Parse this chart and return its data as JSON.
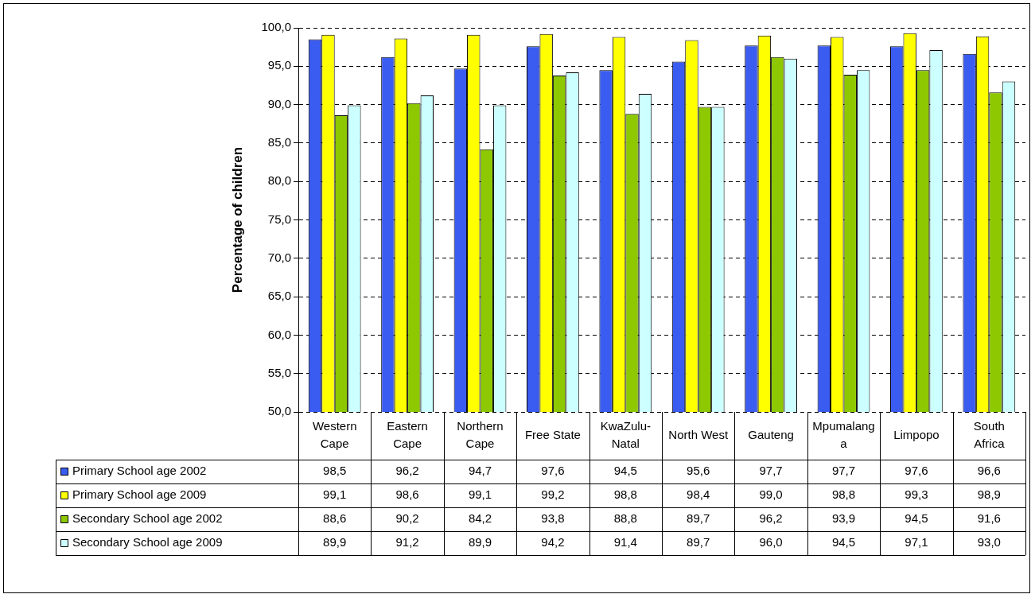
{
  "chart_data": {
    "type": "bar",
    "ylabel": "Percentage of children",
    "categories": [
      "Western Cape",
      "Eastern Cape",
      "Northern Cape",
      "Free State",
      "KwaZulu-Natal",
      "North West",
      "Gauteng",
      "Mpumalanga",
      "Limpopo",
      "South Africa"
    ],
    "series": [
      {
        "name": "Primary School age 2002",
        "color": "#3b5cf0",
        "values": [
          98.5,
          96.2,
          94.7,
          97.6,
          94.5,
          95.6,
          97.7,
          97.7,
          97.6,
          96.6
        ],
        "value_labels": [
          "98,5",
          "96,2",
          "94,7",
          "97,6",
          "94,5",
          "95,6",
          "97,7",
          "97,7",
          "97,6",
          "96,6"
        ]
      },
      {
        "name": "Primary School age 2009",
        "color": "#ffff00",
        "values": [
          99.1,
          98.6,
          99.1,
          99.2,
          98.8,
          98.4,
          99.0,
          98.8,
          99.3,
          98.9
        ],
        "value_labels": [
          "99,1",
          "98,6",
          "99,1",
          "99,2",
          "98,8",
          "98,4",
          "99,0",
          "98,8",
          "99,3",
          "98,9"
        ]
      },
      {
        "name": "Secondary School age 2002",
        "color": "#8dc800",
        "values": [
          88.6,
          90.2,
          84.2,
          93.8,
          88.8,
          89.7,
          96.2,
          93.9,
          94.5,
          91.6
        ],
        "value_labels": [
          "88,6",
          "90,2",
          "84,2",
          "93,8",
          "88,8",
          "89,7",
          "96,2",
          "93,9",
          "94,5",
          "91,6"
        ]
      },
      {
        "name": "Secondary School age 2009",
        "color": "#ccffff",
        "values": [
          89.9,
          91.2,
          89.9,
          94.2,
          91.4,
          89.7,
          96.0,
          94.5,
          97.1,
          93.0
        ],
        "value_labels": [
          "89,9",
          "91,2",
          "89,9",
          "94,2",
          "91,4",
          "89,7",
          "96,0",
          "94,5",
          "97,1",
          "93,0"
        ]
      }
    ],
    "ylim": [
      50,
      100
    ],
    "yticks": [
      {
        "value": 50,
        "label": "50,0"
      },
      {
        "value": 55,
        "label": "55,0"
      },
      {
        "value": 60,
        "label": "60,0"
      },
      {
        "value": 65,
        "label": "65,0"
      },
      {
        "value": 70,
        "label": "70,0"
      },
      {
        "value": 75,
        "label": "75,0"
      },
      {
        "value": 80,
        "label": "80,0"
      },
      {
        "value": 85,
        "label": "85,0"
      },
      {
        "value": 90,
        "label": "90,0"
      },
      {
        "value": 95,
        "label": "95,0"
      },
      {
        "value": 100,
        "label": "100,0"
      }
    ],
    "grid": "y",
    "legend": "bottom"
  }
}
